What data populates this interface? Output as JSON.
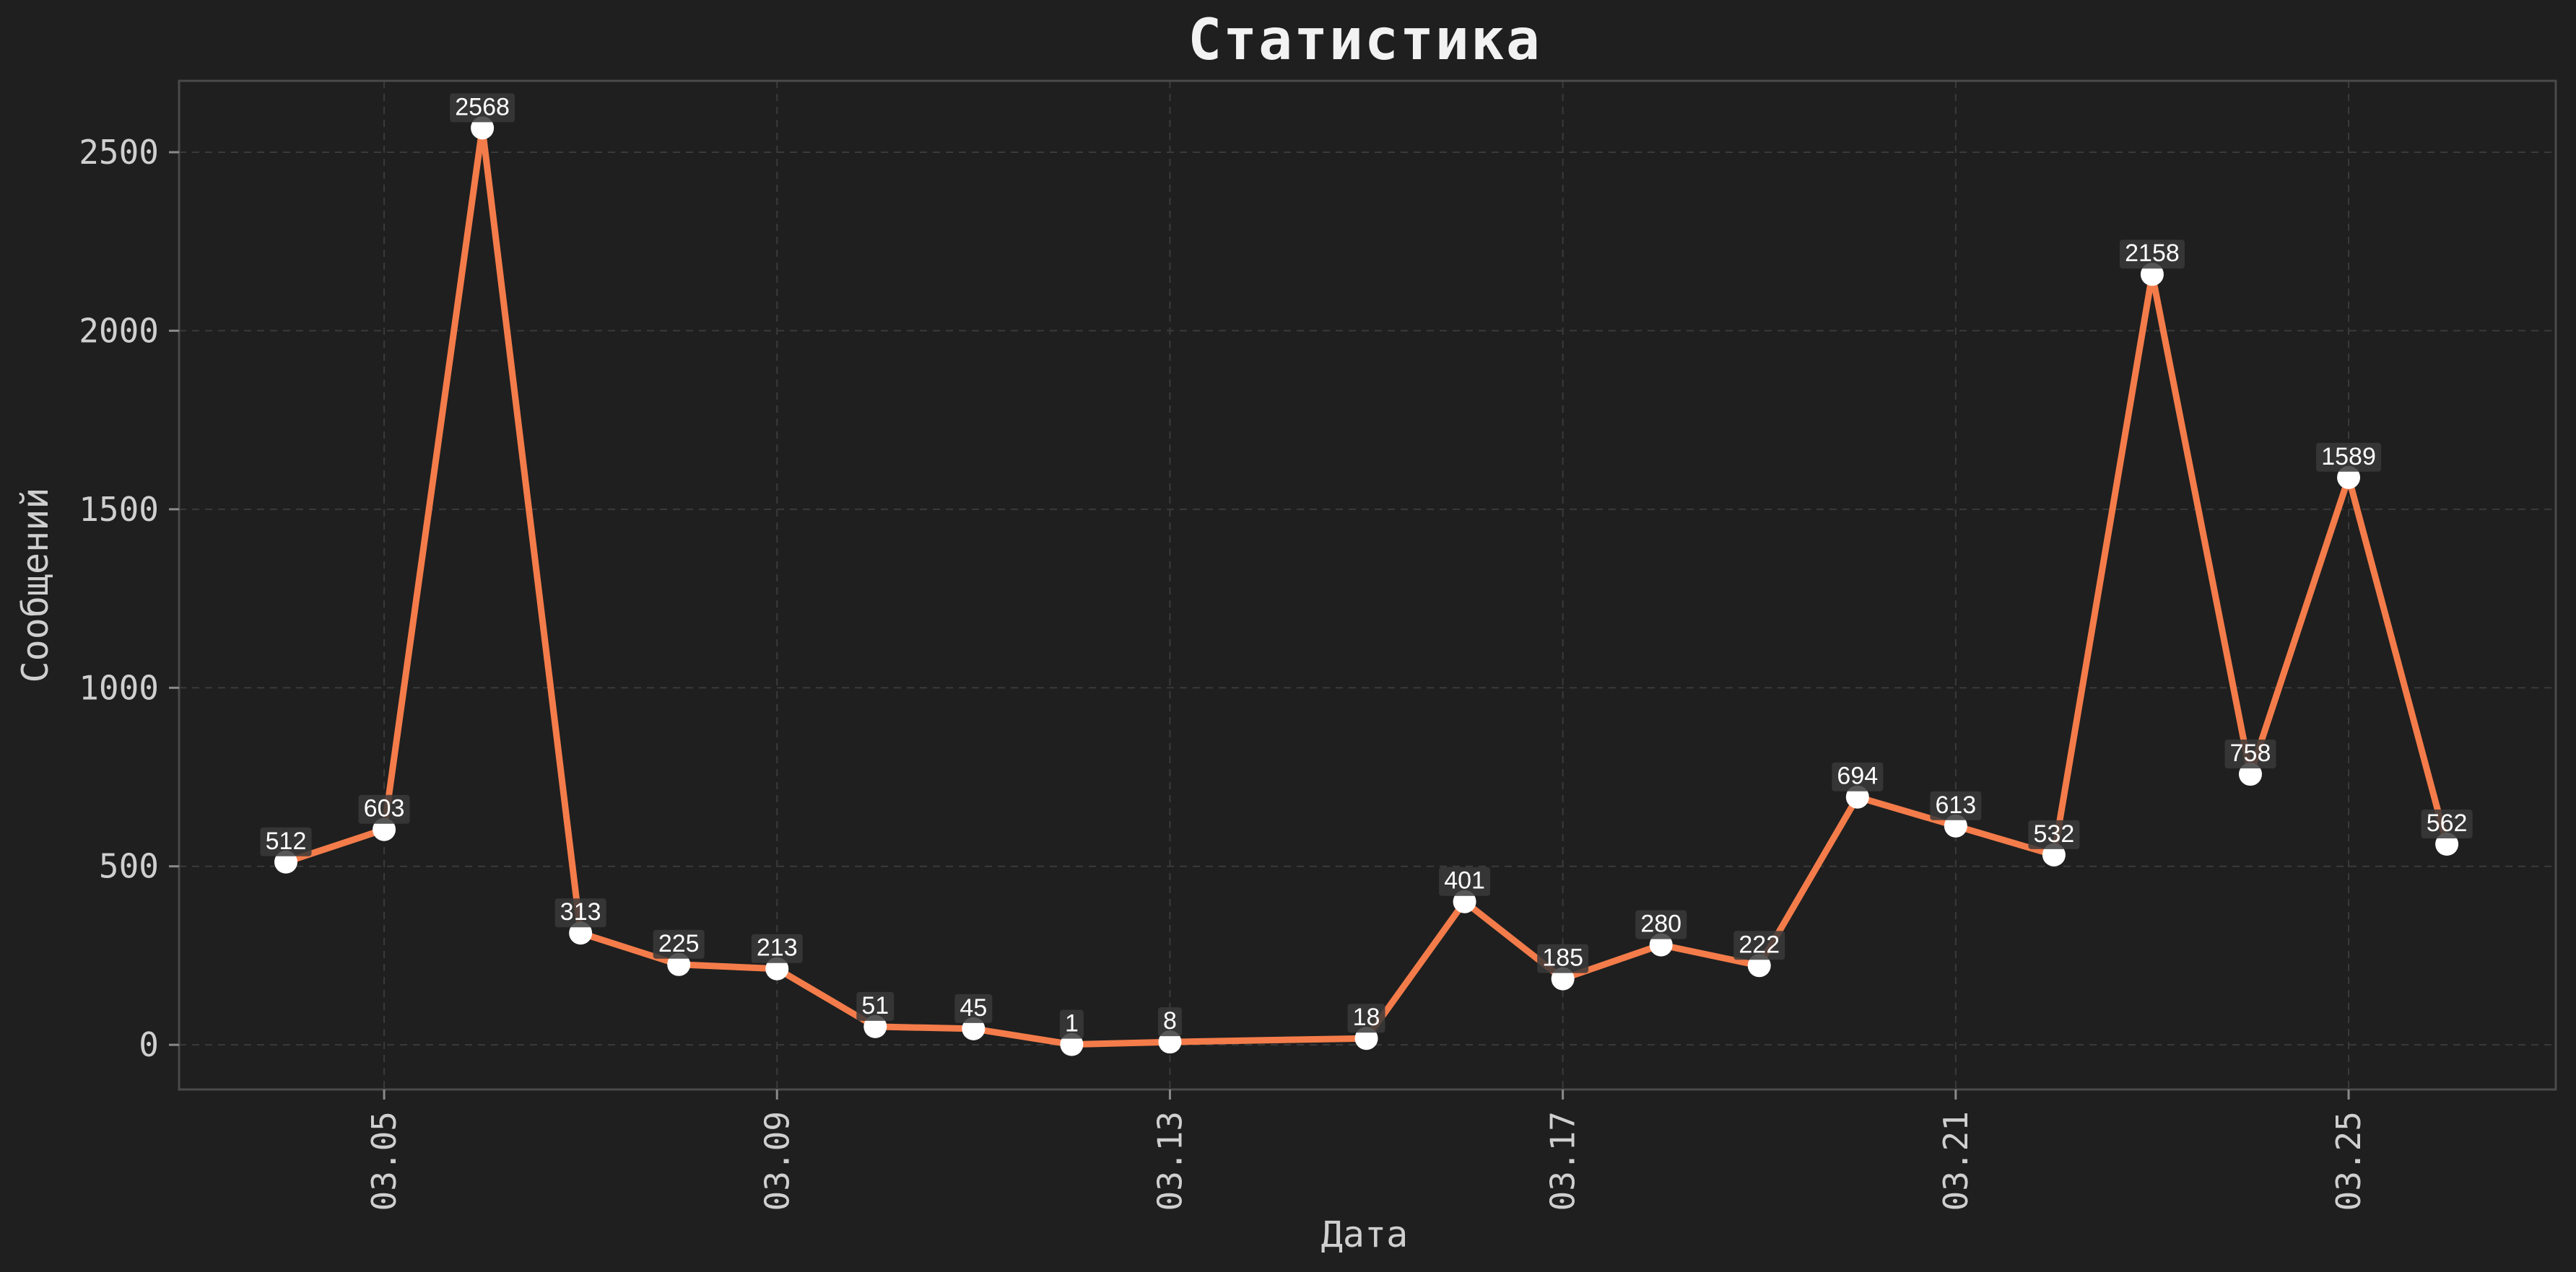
{
  "chart_data": {
    "type": "line",
    "title": "Статистика",
    "xlabel": "Дата",
    "ylabel": "Сообщений",
    "grid": true,
    "ylim": [
      -125,
      2700
    ],
    "yticks": [
      0,
      500,
      1000,
      1500,
      2000,
      2500
    ],
    "x_tick_labels": [
      "03.05",
      "03.09",
      "03.13",
      "03.17",
      "03.21",
      "03.25"
    ],
    "colors": {
      "background": "#1f1f1f",
      "line": "#f47c4a",
      "marker": "#ffffff",
      "label_box": "#3a3a3a"
    },
    "series": [
      {
        "x": [
          "03.04",
          "03.05",
          "03.06",
          "03.07",
          "03.08",
          "03.09",
          "03.10",
          "03.11",
          "03.12",
          "03.13",
          "03.15",
          "03.16",
          "03.17",
          "03.18",
          "03.19",
          "03.20",
          "03.21",
          "03.22",
          "03.23",
          "03.24",
          "03.25",
          "03.26"
        ],
        "values": [
          512,
          603,
          2568,
          313,
          225,
          213,
          51,
          45,
          1,
          8,
          18,
          401,
          185,
          280,
          222,
          694,
          613,
          532,
          2158,
          758,
          1589,
          562
        ]
      }
    ]
  }
}
